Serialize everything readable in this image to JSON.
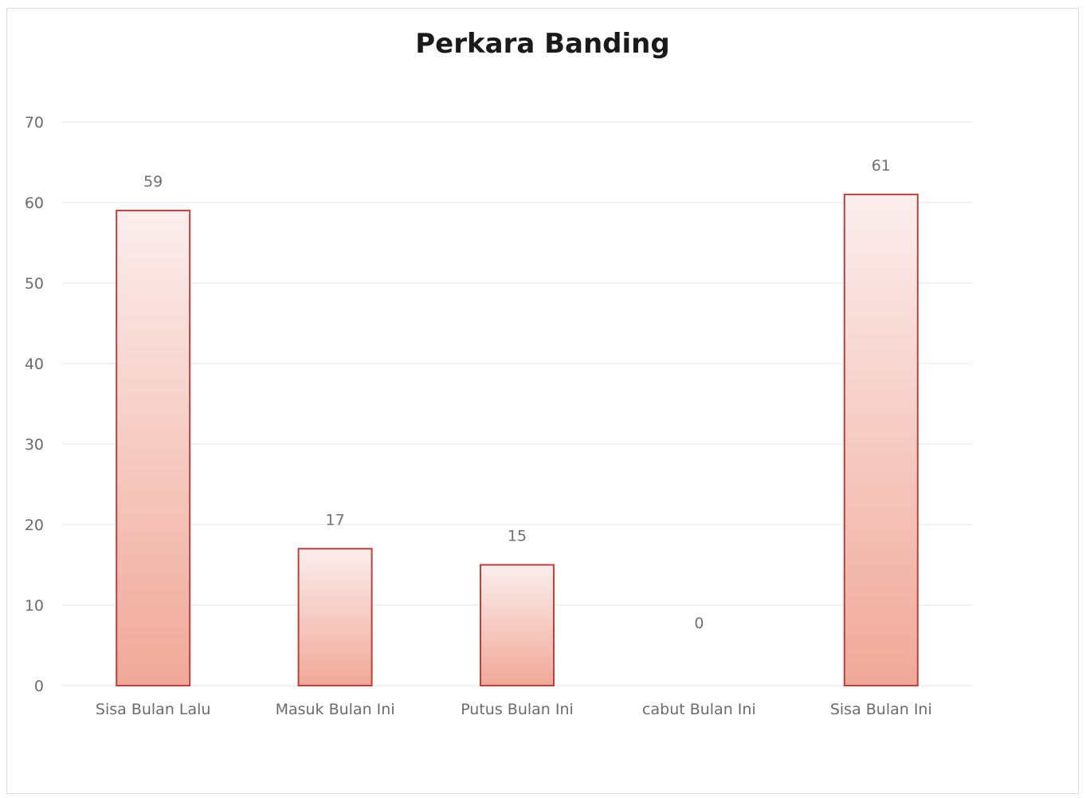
{
  "chart_data": {
    "type": "bar",
    "title": "Perkara Banding",
    "categories": [
      "Sisa Bulan Lalu",
      "Masuk Bulan Ini",
      "Putus Bulan Ini",
      "cabut Bulan Ini",
      "Sisa Bulan Ini"
    ],
    "values": [
      59,
      17,
      15,
      0,
      61
    ],
    "data_labels": [
      "59",
      "17",
      "15",
      "0",
      "61"
    ],
    "xlabel": "",
    "ylabel": "",
    "ylim": [
      0,
      70
    ],
    "yticks": [
      0,
      10,
      20,
      30,
      40,
      50,
      60,
      70
    ],
    "grid": true,
    "legend": "none",
    "colors": {
      "bar_top": "#fbeeee",
      "bar_bottom": "#f0a898",
      "bar_border": "#b8413c",
      "grid": "#e4e4e4",
      "text": "#6b6b6b",
      "title": "#1a1a1a"
    }
  }
}
